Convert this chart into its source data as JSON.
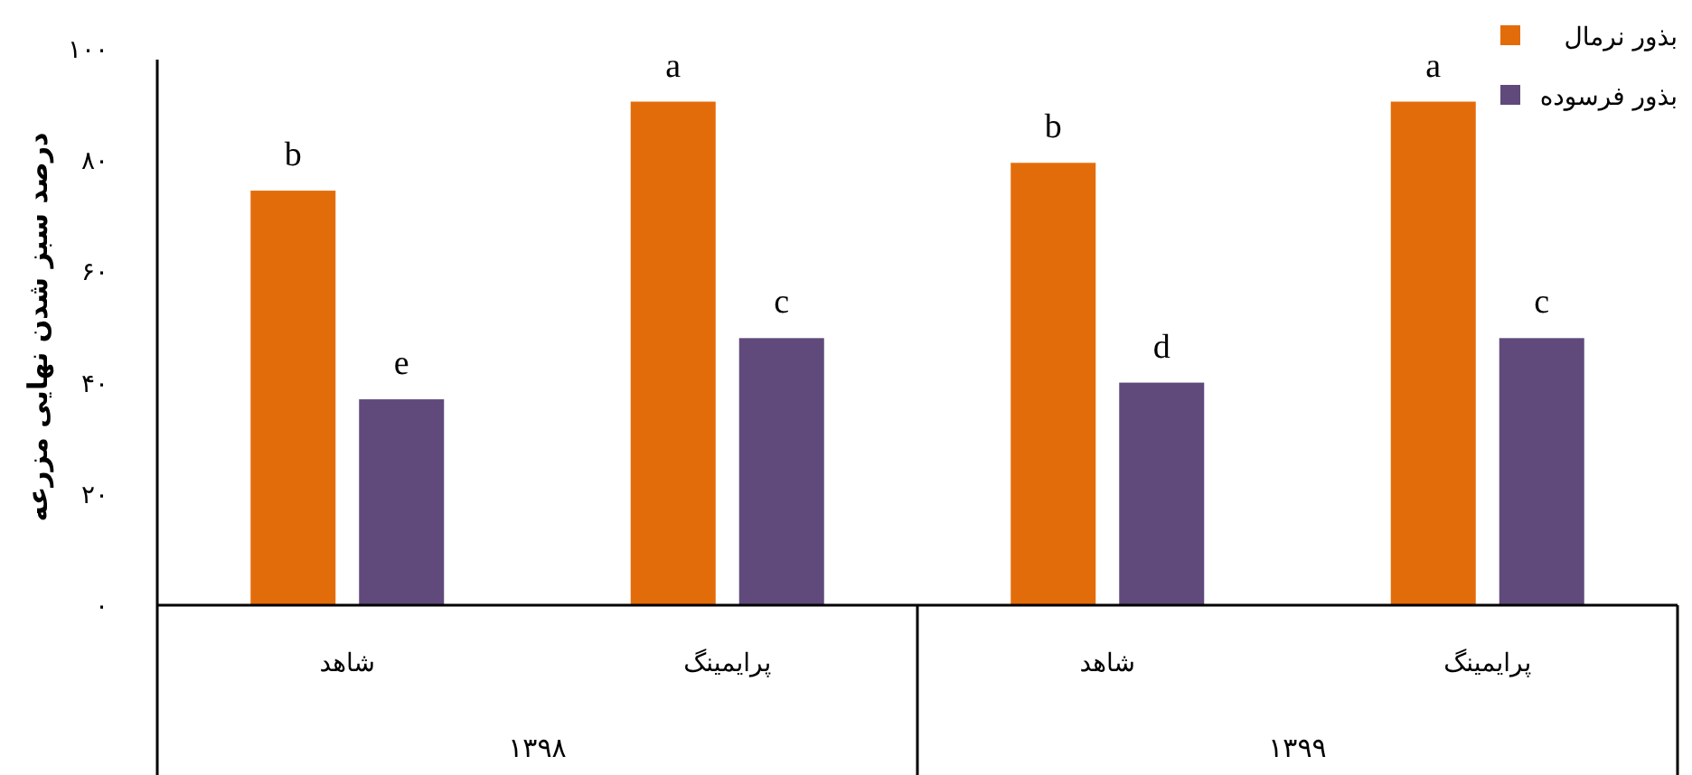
{
  "chart_data": {
    "type": "bar",
    "ylabel": "درصد سبز شدن نهایی مزرعه",
    "categories": [
      "شاهد",
      "پرایمینگ",
      "شاهد",
      "پرایمینگ"
    ],
    "series": [
      {
        "name": "بذور نرمال",
        "color": "#e36c0a",
        "values": [
          74.5,
          90.5,
          79.5,
          90.5
        ],
        "value_labels": [
          "b",
          "a",
          "b",
          "a"
        ]
      },
      {
        "name": "بذور فرسوده",
        "color": "#604a7b",
        "values": [
          37,
          48,
          40,
          48
        ],
        "value_labels": [
          "e",
          "c",
          "d",
          "c"
        ]
      }
    ],
    "annotations": [
      "۱۳۹۸",
      "۱۳۹۹"
    ],
    "ylim": [
      0,
      100
    ],
    "yticks": [
      {
        "value": 0,
        "label": "۰"
      },
      {
        "value": 20,
        "label": "۲۰"
      },
      {
        "value": 40,
        "label": "۴۰"
      },
      {
        "value": 60,
        "label": "۶۰"
      },
      {
        "value": 80,
        "label": "۸۰"
      },
      {
        "value": 100,
        "label": "۱۰۰"
      }
    ],
    "grid": false,
    "legend": "top right"
  }
}
